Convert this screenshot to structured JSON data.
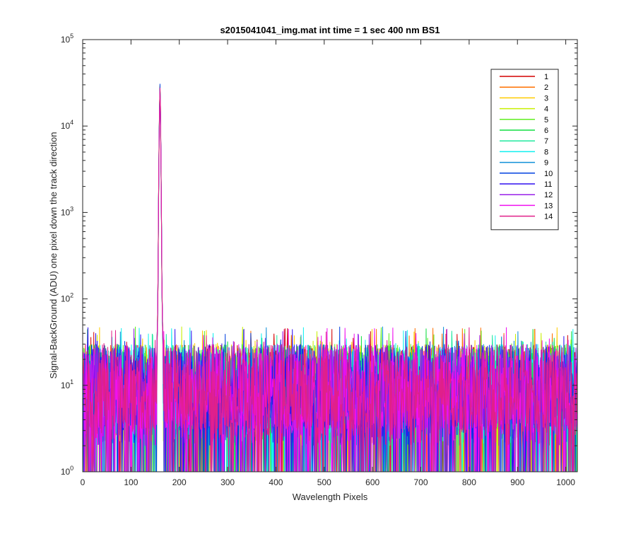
{
  "chart_data": {
    "type": "line",
    "title": "s2015041041_img.mat int time = 1 sec  400 nm BS1",
    "xlabel": "Wavelength Pixels",
    "ylabel": "Signal-BackGround (ADU) one pixel down the track direction",
    "xlim": [
      0,
      1024
    ],
    "ylim": [
      1,
      100000
    ],
    "yscale": "log",
    "grid": false,
    "legend_position": "top-right",
    "x_ticks": [
      0,
      100,
      200,
      300,
      400,
      500,
      600,
      700,
      800,
      900,
      1000
    ],
    "y_ticks": [
      1,
      10,
      100,
      1000,
      10000,
      100000
    ],
    "y_tick_labels": [
      {
        "base": "10",
        "exp": "0"
      },
      {
        "base": "10",
        "exp": "1"
      },
      {
        "base": "10",
        "exp": "2"
      },
      {
        "base": "10",
        "exp": "3"
      },
      {
        "base": "10",
        "exp": "4"
      },
      {
        "base": "10",
        "exp": "5"
      }
    ],
    "x_range": [
      1,
      1024
    ],
    "noise_floor": 1,
    "noise_typical": [
      2,
      30
    ],
    "noise_max": 48,
    "peak_x": 160,
    "peak_y": 27000,
    "series": [
      {
        "name": "1",
        "color": "#d40000"
      },
      {
        "name": "2",
        "color": "#ff7000"
      },
      {
        "name": "3",
        "color": "#ffcc00"
      },
      {
        "name": "4",
        "color": "#c8f000"
      },
      {
        "name": "5",
        "color": "#60ee20"
      },
      {
        "name": "6",
        "color": "#10dd40"
      },
      {
        "name": "7",
        "color": "#20e8a0"
      },
      {
        "name": "8",
        "color": "#10f0f0"
      },
      {
        "name": "9",
        "color": "#1090d8"
      },
      {
        "name": "10",
        "color": "#0040e0"
      },
      {
        "name": "11",
        "color": "#3010f0"
      },
      {
        "name": "12",
        "color": "#9820e8"
      },
      {
        "name": "13",
        "color": "#f010f0"
      },
      {
        "name": "14",
        "color": "#e0208a"
      }
    ]
  }
}
